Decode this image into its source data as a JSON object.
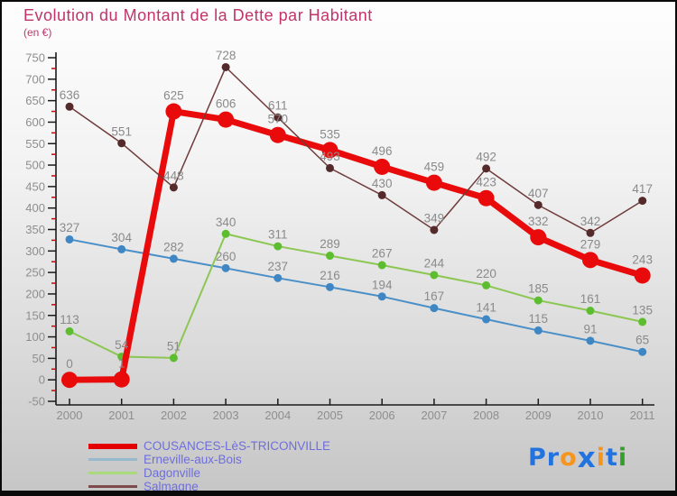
{
  "title": "Evolution du Montant de la Dette par Habitant",
  "subtitle": "(en €)",
  "colors": {
    "title_pink": "#C0346A",
    "axis_line": "#1a1a1a",
    "axis_label_gray": "#8E8E8E",
    "data_label_gray": "#8A8A8A",
    "minor_tick_red": "#D40000",
    "legend_text": "#6E6EDC",
    "background_top": "#FEFEFE",
    "background_bottom": "#C6C6C6"
  },
  "chart_data": {
    "type": "line",
    "title": "Evolution du Montant de la Dette par Habitant",
    "ylabel": "en €",
    "xlabel": "",
    "grid": false,
    "legend_position": "bottom-left",
    "ylim": [
      -50,
      750
    ],
    "ytick_step": 50,
    "categories": [
      "2000",
      "2001",
      "2002",
      "2003",
      "2004",
      "2005",
      "2006",
      "2007",
      "2008",
      "2009",
      "2010",
      "2011"
    ],
    "series": [
      {
        "name": "COUSANCES-LèS-TRICONVILLE",
        "color": "#E90B0B",
        "point_color": "#E90B0B",
        "line_width": 7,
        "point_radius": 9,
        "values": [
          0,
          1,
          625,
          606,
          570,
          535,
          496,
          459,
          423,
          332,
          279,
          243
        ]
      },
      {
        "name": "Erneville-aux-Bois",
        "color": "#4A8FC7",
        "point_color": "#3E87C4",
        "line_width": 2,
        "point_radius": 4.5,
        "values": [
          327,
          304,
          282,
          260,
          237,
          216,
          194,
          167,
          141,
          115,
          91,
          65
        ]
      },
      {
        "name": "Dagonville",
        "color": "#8CC653",
        "point_color": "#5CBE2F",
        "line_width": 2,
        "point_radius": 4.5,
        "values": [
          113,
          54,
          51,
          340,
          311,
          289,
          267,
          244,
          220,
          185,
          161,
          135
        ]
      },
      {
        "name": "Salmagne",
        "color": "#6F3B3B",
        "point_color": "#542A2A",
        "line_width": 1.5,
        "point_radius": 4.5,
        "values": [
          636,
          551,
          448,
          728,
          611,
          493,
          430,
          349,
          492,
          407,
          342,
          417
        ]
      }
    ]
  },
  "legend": {
    "items": [
      {
        "label": "COUSANCES-LèS-TRICONVILLE",
        "swatch_color": "#E40000",
        "swatch_height": 6
      },
      {
        "label": "Erneville-aux-Bois",
        "swatch_color": "#96B9CB",
        "swatch_height": 3
      },
      {
        "label": "Dagonville",
        "swatch_color": "#A9DA7C",
        "swatch_height": 3
      },
      {
        "label": "Salmagne",
        "swatch_color": "#7D4B4B",
        "swatch_height": 3
      }
    ]
  },
  "logo": {
    "text": "Proxiti",
    "letters": [
      {
        "ch": "P",
        "color": "#2273DE",
        "big": false
      },
      {
        "ch": "r",
        "color": "#2273DE",
        "big": false
      },
      {
        "ch": "o",
        "color": "#F7941D",
        "big": false
      },
      {
        "ch": "x",
        "color": "#2273DE",
        "big": true
      },
      {
        "ch": "i",
        "color": "#F7941D",
        "big": false
      },
      {
        "ch": "t",
        "color": "#2273DE",
        "big": false
      },
      {
        "ch": "i",
        "color": "#33A02C",
        "big": false
      }
    ]
  }
}
